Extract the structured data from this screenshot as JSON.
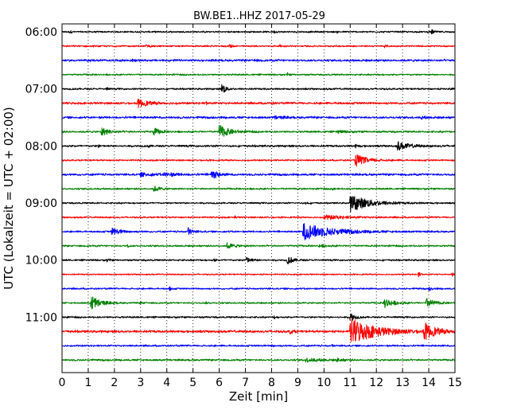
{
  "chart_data": {
    "type": "line",
    "title": "BW.BE1..HHZ 2017-05-29",
    "xlabel": "Zeit  [min]",
    "ylabel": "UTC (Lokalzeit = UTC + 02:00)",
    "xlim": [
      0,
      15
    ],
    "x_ticks": [
      "0",
      "1",
      "2",
      "3",
      "4",
      "5",
      "6",
      "7",
      "8",
      "9",
      "10",
      "11",
      "12",
      "13",
      "14",
      "15"
    ],
    "y_tick_labels": [
      "06:00",
      "07:00",
      "08:00",
      "09:00",
      "10:00",
      "11:00"
    ],
    "trace_interval_min": 15,
    "trace_start": "06:00",
    "trace_colors": [
      "#000000",
      "#ff0000",
      "#0000ff",
      "#008000"
    ],
    "grid": "vertical dotted lines at each minute",
    "traces": [
      {
        "start": "06:00",
        "noise": 0.12,
        "events": [
          {
            "t": 0.3,
            "a": 0.28,
            "d": 0.05
          },
          {
            "t": 8.1,
            "a": 0.18,
            "d": 0.05
          },
          {
            "t": 10.5,
            "a": 0.15,
            "d": 0.05
          },
          {
            "t": 14.1,
            "a": 0.4,
            "d": 0.1
          }
        ]
      },
      {
        "start": "06:15",
        "noise": 0.12,
        "events": [
          {
            "t": 3.2,
            "a": 0.18,
            "d": 0.2
          },
          {
            "t": 6.4,
            "a": 0.55,
            "d": 0.06
          },
          {
            "t": 8.3,
            "a": 0.3,
            "d": 0.05
          },
          {
            "t": 12.3,
            "a": 0.15,
            "d": 0.1
          }
        ]
      },
      {
        "start": "06:30",
        "noise": 0.16,
        "events": [
          {
            "t": 2.7,
            "a": 0.2,
            "d": 0.1
          },
          {
            "t": 7.3,
            "a": 0.18,
            "d": 0.1
          }
        ]
      },
      {
        "start": "06:45",
        "noise": 0.12,
        "events": [
          {
            "t": 8.6,
            "a": 0.25,
            "d": 0.05
          }
        ]
      },
      {
        "start": "07:00",
        "noise": 0.13,
        "events": [
          {
            "t": 1.7,
            "a": 0.25,
            "d": 0.05
          },
          {
            "t": 6.1,
            "a": 1.2,
            "d": 0.12
          },
          {
            "t": 14.8,
            "a": 0.45,
            "d": 0.05
          }
        ]
      },
      {
        "start": "07:15",
        "noise": 0.16,
        "events": [
          {
            "t": 2.9,
            "a": 0.7,
            "d": 0.35
          },
          {
            "t": 5.5,
            "a": 0.3,
            "d": 0.05
          },
          {
            "t": 8.0,
            "a": 0.2,
            "d": 0.05
          },
          {
            "t": 10.5,
            "a": 0.25,
            "d": 0.05
          }
        ]
      },
      {
        "start": "07:30",
        "noise": 0.16,
        "events": [
          {
            "t": 8.1,
            "a": 0.25,
            "d": 0.3
          },
          {
            "t": 13.7,
            "a": 0.2,
            "d": 0.2
          }
        ]
      },
      {
        "start": "07:45",
        "noise": 0.14,
        "events": [
          {
            "t": 1.5,
            "a": 0.8,
            "d": 0.25
          },
          {
            "t": 3.5,
            "a": 0.7,
            "d": 0.2
          },
          {
            "t": 6.0,
            "a": 1.2,
            "d": 0.35
          },
          {
            "t": 10.5,
            "a": 0.2,
            "d": 0.3
          }
        ]
      },
      {
        "start": "08:00",
        "noise": 0.15,
        "events": [
          {
            "t": 1.4,
            "a": 0.3,
            "d": 0.05
          },
          {
            "t": 3.3,
            "a": 0.25,
            "d": 0.05
          },
          {
            "t": 11.2,
            "a": 0.28,
            "d": 0.1
          },
          {
            "t": 12.8,
            "a": 0.75,
            "d": 0.4
          }
        ]
      },
      {
        "start": "08:15",
        "noise": 0.12,
        "events": [
          {
            "t": 11.2,
            "a": 1.1,
            "d": 0.4
          },
          {
            "t": 14.9,
            "a": 0.25,
            "d": 0.05
          }
        ]
      },
      {
        "start": "08:30",
        "noise": 0.16,
        "events": [
          {
            "t": 3.0,
            "a": 0.3,
            "d": 0.4
          },
          {
            "t": 3.9,
            "a": 0.35,
            "d": 0.4
          },
          {
            "t": 5.7,
            "a": 1.0,
            "d": 0.2
          }
        ]
      },
      {
        "start": "08:45",
        "noise": 0.13,
        "events": [
          {
            "t": 3.5,
            "a": 0.5,
            "d": 0.2
          },
          {
            "t": 10.3,
            "a": 0.2,
            "d": 0.1
          }
        ]
      },
      {
        "start": "09:00",
        "noise": 0.12,
        "events": [
          {
            "t": 11.0,
            "a": 1.5,
            "d": 0.7
          },
          {
            "t": 9.3,
            "a": 0.2,
            "d": 0.1
          }
        ]
      },
      {
        "start": "09:15",
        "noise": 0.12,
        "events": [
          {
            "t": 6.6,
            "a": 0.25,
            "d": 0.05
          },
          {
            "t": 10.0,
            "a": 0.35,
            "d": 0.8
          }
        ]
      },
      {
        "start": "09:30",
        "noise": 0.13,
        "events": [
          {
            "t": 1.9,
            "a": 0.65,
            "d": 0.3
          },
          {
            "t": 4.8,
            "a": 0.75,
            "d": 0.15
          },
          {
            "t": 9.2,
            "a": 1.5,
            "d": 1.0
          }
        ]
      },
      {
        "start": "09:45",
        "noise": 0.13,
        "events": [
          {
            "t": 2.5,
            "a": 0.25,
            "d": 0.05
          },
          {
            "t": 6.3,
            "a": 0.5,
            "d": 0.25
          },
          {
            "t": 9.8,
            "a": 0.2,
            "d": 0.3
          }
        ]
      },
      {
        "start": "10:00",
        "noise": 0.13,
        "events": [
          {
            "t": 1.7,
            "a": 0.25,
            "d": 0.1
          },
          {
            "t": 7.0,
            "a": 0.55,
            "d": 0.2
          },
          {
            "t": 8.6,
            "a": 0.75,
            "d": 0.2
          },
          {
            "t": 5.8,
            "a": 0.3,
            "d": 0.05
          }
        ]
      },
      {
        "start": "10:15",
        "noise": 0.1,
        "events": [
          {
            "t": 13.6,
            "a": 0.55,
            "d": 0.06
          },
          {
            "t": 14.9,
            "a": 0.4,
            "d": 0.05
          }
        ]
      },
      {
        "start": "10:30",
        "noise": 0.12,
        "events": [
          {
            "t": 4.1,
            "a": 0.45,
            "d": 0.05
          },
          {
            "t": 14.0,
            "a": 0.3,
            "d": 0.1
          }
        ]
      },
      {
        "start": "10:45",
        "noise": 0.12,
        "events": [
          {
            "t": 1.1,
            "a": 1.4,
            "d": 0.3
          },
          {
            "t": 12.3,
            "a": 0.9,
            "d": 0.3
          },
          {
            "t": 13.9,
            "a": 0.8,
            "d": 0.3
          },
          {
            "t": 3.0,
            "a": 0.15,
            "d": 0.1
          },
          {
            "t": 5.5,
            "a": 0.15,
            "d": 0.1
          }
        ]
      },
      {
        "start": "11:00",
        "noise": 0.13,
        "events": [
          {
            "t": 11.0,
            "a": 0.9,
            "d": 0.15
          },
          {
            "t": 8.1,
            "a": 0.3,
            "d": 0.05
          }
        ]
      },
      {
        "start": "11:15",
        "noise": 0.18,
        "events": [
          {
            "t": 11.0,
            "a": 2.4,
            "d": 0.9
          },
          {
            "t": 13.8,
            "a": 1.5,
            "d": 0.4
          },
          {
            "t": 8.7,
            "a": 0.4,
            "d": 0.1
          }
        ]
      },
      {
        "start": "11:30",
        "noise": 0.13,
        "events": [
          {
            "t": 8.0,
            "a": 0.3,
            "d": 0.05
          },
          {
            "t": 10.3,
            "a": 0.2,
            "d": 0.05
          }
        ]
      },
      {
        "start": "11:45",
        "noise": 0.14,
        "events": [
          {
            "t": 9.3,
            "a": 0.3,
            "d": 0.5
          },
          {
            "t": 10.5,
            "a": 0.25,
            "d": 0.2
          }
        ]
      }
    ]
  }
}
